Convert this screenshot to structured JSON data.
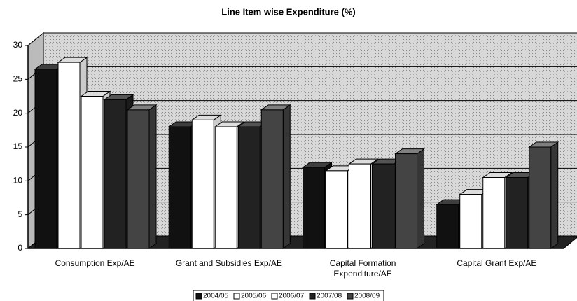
{
  "chart_data": {
    "type": "bar",
    "title": "Line Item wise Expenditure (%)",
    "categories": [
      "Consumption Exp/AE",
      "Grant and Subsidies Exp/AE",
      "Capital Formation Expenditure/AE",
      "Capital Grant Exp/AE"
    ],
    "series": [
      {
        "name": "2004/05",
        "color": "#111111",
        "values": [
          26.5,
          18,
          12,
          6.5
        ]
      },
      {
        "name": "2005/06",
        "color": "#ffffff",
        "values": [
          27.5,
          19,
          11.5,
          8
        ]
      },
      {
        "name": "2006/07",
        "color": "#ffffff",
        "values": [
          22.5,
          18,
          12.5,
          10.5
        ]
      },
      {
        "name": "2007/08",
        "color": "#222222",
        "values": [
          22,
          18,
          12.5,
          10.5
        ]
      },
      {
        "name": "2008/09",
        "color": "#444444",
        "values": [
          20.5,
          20.5,
          14,
          15
        ]
      }
    ],
    "ylim": [
      0,
      30
    ],
    "yticks": [
      0,
      5,
      10,
      15,
      20,
      25,
      30
    ],
    "grid": true
  }
}
